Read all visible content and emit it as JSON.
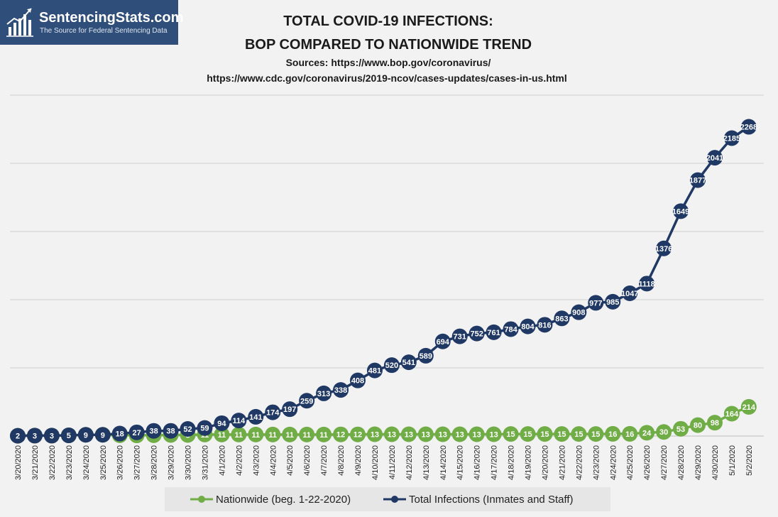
{
  "brand": {
    "name": "SentencingStats.com",
    "tagline": "The Source for Federal Sentencing Data",
    "icon": "bar-chart-logo-icon",
    "color": "#2f4f7a"
  },
  "chart_data": {
    "type": "line",
    "title": [
      "TOTAL COVID-19 INFECTIONS:",
      "BOP COMPARED TO NATIONWIDE TREND"
    ],
    "subtitle": [
      "Sources: https://www.bop.gov/coronavirus/",
      "https://www.cdc.gov/coronavirus/2019-ncov/cases-updates/cases-in-us.html"
    ],
    "xlabel": "",
    "ylabel": "",
    "ylim": [
      0,
      2500
    ],
    "grid": true,
    "legend_position": "bottom",
    "categories": [
      "3/20/2020",
      "3/21/2020",
      "3/22/2020",
      "3/23/2020",
      "3/24/2020",
      "3/25/2020",
      "3/26/2020",
      "3/27/2020",
      "3/28/2020",
      "3/29/2020",
      "3/30/2020",
      "3/31/2020",
      "4/1/2020",
      "4/2/2020",
      "4/3/2020",
      "4/4/2020",
      "4/5/2020",
      "4/6/2020",
      "4/7/2020",
      "4/8/2020",
      "4/9/2020",
      "4/10/2020",
      "4/11/2020",
      "4/12/2020",
      "4/13/2020",
      "4/14/2020",
      "4/15/2020",
      "4/16/2020",
      "4/17/2020",
      "4/18/2020",
      "4/19/2020",
      "4/20/2020",
      "4/21/2020",
      "4/22/2020",
      "4/23/2020",
      "4/24/2020",
      "4/25/2020",
      "4/26/2020",
      "4/27/2020",
      "4/28/2020",
      "4/29/2020",
      "4/30/2020",
      "5/1/2020",
      "5/2/2020"
    ],
    "series": [
      {
        "name": "Nationwide (beg. 1-22-2020)",
        "color": "#70ad47",
        "values": [
          2,
          3,
          3,
          5,
          9,
          9,
          6,
          5,
          6,
          8,
          8,
          11,
          11,
          11,
          11,
          11,
          11,
          11,
          11,
          12,
          12,
          13,
          13,
          13,
          13,
          13,
          13,
          13,
          13,
          15,
          15,
          15,
          15,
          15,
          15,
          16,
          16,
          24,
          30,
          53,
          80,
          98,
          164,
          214
        ],
        "labels": [
          "2",
          "3",
          "3",
          "5",
          "9",
          "9",
          "6",
          "5",
          "6",
          "8",
          "8",
          "11",
          "11",
          "11",
          "11",
          "11",
          "11",
          "11",
          "11",
          "12",
          "12",
          "13",
          "13",
          "13",
          "13",
          "13",
          "13",
          "13",
          "13",
          "15",
          "15",
          "15",
          "15",
          "15",
          "15",
          "16",
          "16",
          "24",
          "30",
          "53",
          "80",
          "98",
          "164",
          "214"
        ]
      },
      {
        "name": "Total Infections (Inmates and Staff)",
        "color": "#203864",
        "values": [
          2,
          3,
          3,
          5,
          9,
          9,
          18,
          27,
          38,
          38,
          52,
          59,
          94,
          114,
          141,
          174,
          197,
          259,
          313,
          338,
          408,
          481,
          520,
          541,
          589,
          694,
          731,
          752,
          761,
          784,
          804,
          816,
          863,
          908,
          977,
          985,
          1047,
          1118,
          1376,
          1649,
          1877,
          2041,
          2185,
          2268
        ],
        "labels": [
          "2",
          "3",
          "3",
          "5",
          "9",
          "9",
          "18",
          "27",
          "38",
          "38",
          "52",
          "59",
          "94",
          "114",
          "141",
          "174",
          "197",
          "259",
          "313",
          "338",
          "408",
          "481",
          "520",
          "541",
          "589",
          "694",
          "731",
          "752",
          "761",
          "784",
          "804",
          "816",
          "863",
          "908",
          "977",
          "985",
          "1047",
          "1118",
          "1376",
          "1649",
          "1877",
          "2041",
          "2185",
          "2268"
        ]
      }
    ]
  }
}
